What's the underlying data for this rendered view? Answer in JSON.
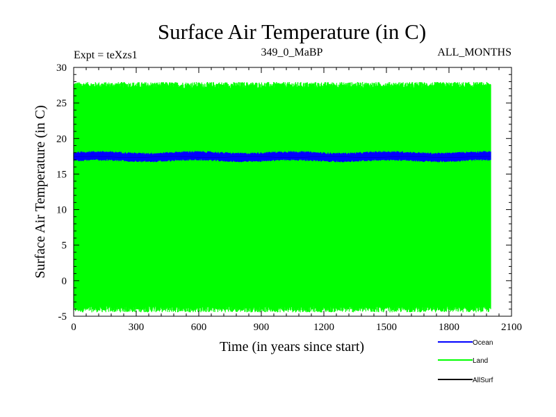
{
  "chart_data": {
    "type": "line",
    "title": "Surface Air Temperature (in C)",
    "subtitle_left": "Expt = teXzs1",
    "subtitle_center": "349_0_MaBP",
    "subtitle_right": "ALL_MONTHS",
    "xlabel": "Time (in years since start)",
    "ylabel": "Surface Air Temperature (in C)",
    "xlim": [
      0,
      2100
    ],
    "ylim": [
      -5,
      30
    ],
    "xticks": [
      0,
      300,
      600,
      900,
      1200,
      1500,
      1800,
      2100
    ],
    "yticks": [
      -5,
      0,
      5,
      10,
      15,
      20,
      25,
      30
    ],
    "xtick_labels": [
      "0",
      "300",
      "600",
      "900",
      "1200",
      "1500",
      "1800",
      "2100"
    ],
    "ytick_labels": [
      "-5",
      "0",
      "5",
      "10",
      "15",
      "20",
      "25",
      "30"
    ],
    "series": [
      {
        "name": "Ocean",
        "color": "#0000ff",
        "x_range": [
          0,
          2000
        ],
        "band_low": 16.9,
        "band_high": 18.0,
        "mean": 17.4
      },
      {
        "name": "Land",
        "color": "#00ff00",
        "x_range": [
          0,
          2000
        ],
        "band_low": -4.0,
        "band_high": 27.5,
        "mean": 11.7
      },
      {
        "name": "AllSurf",
        "color": "#000000",
        "x_range": [
          0,
          2000
        ],
        "mean": 17.4
      }
    ],
    "legend": [
      {
        "label": "Ocean",
        "color": "#0000ff"
      },
      {
        "label": "Land",
        "color": "#00ff00"
      },
      {
        "label": "AllSurf",
        "color": "#000000"
      }
    ],
    "legend_position": "bottom-right"
  }
}
